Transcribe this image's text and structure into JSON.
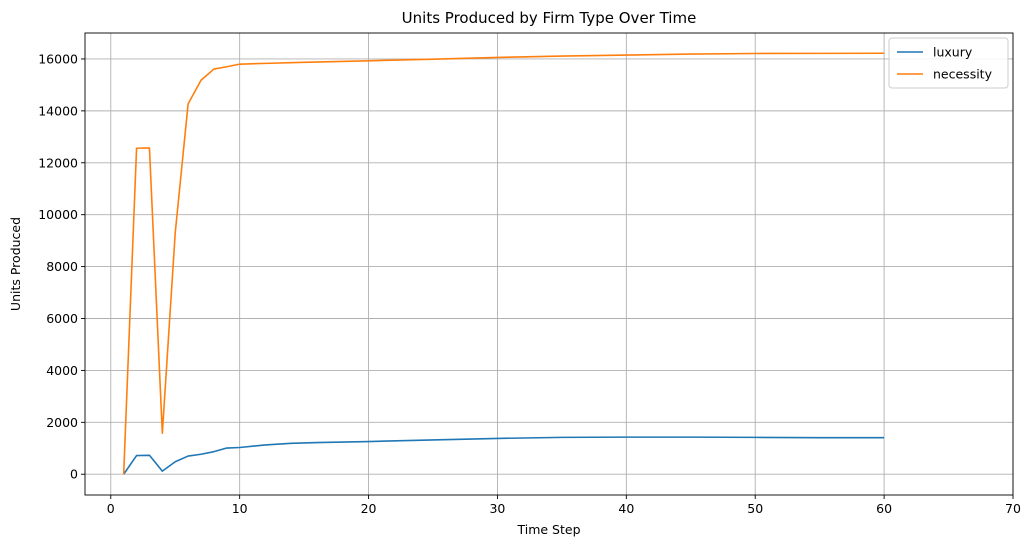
{
  "chart_data": {
    "type": "line",
    "title": "Units Produced by Firm Type Over Time",
    "xlabel": "Time Step",
    "ylabel": "Units Produced",
    "xlim": [
      -2,
      70
    ],
    "ylim": [
      -800,
      17000
    ],
    "xticks": [
      0,
      10,
      20,
      30,
      40,
      50,
      60,
      70
    ],
    "yticks": [
      0,
      2000,
      4000,
      6000,
      8000,
      10000,
      12000,
      14000,
      16000
    ],
    "grid": true,
    "legend_position": "top-right",
    "series": [
      {
        "name": "luxury",
        "color": "#1f77b4",
        "x": [
          1,
          2,
          3,
          4,
          5,
          6,
          7,
          8,
          9,
          10,
          12,
          14,
          16,
          18,
          20,
          25,
          30,
          35,
          40,
          45,
          50,
          55,
          60
        ],
        "y": [
          0,
          720,
          730,
          120,
          480,
          700,
          770,
          870,
          1010,
          1030,
          1130,
          1190,
          1220,
          1240,
          1260,
          1320,
          1380,
          1420,
          1430,
          1430,
          1420,
          1410,
          1410
        ]
      },
      {
        "name": "necessity",
        "color": "#ff7f0e",
        "x": [
          1,
          2,
          3,
          4,
          5,
          6,
          7,
          8,
          9,
          10,
          12,
          15,
          20,
          25,
          30,
          35,
          40,
          45,
          50,
          55,
          60
        ],
        "y": [
          0,
          12560,
          12570,
          1580,
          9300,
          14270,
          15180,
          15610,
          15700,
          15800,
          15830,
          15870,
          15930,
          15990,
          16060,
          16110,
          16150,
          16190,
          16210,
          16215,
          16220
        ]
      }
    ]
  }
}
